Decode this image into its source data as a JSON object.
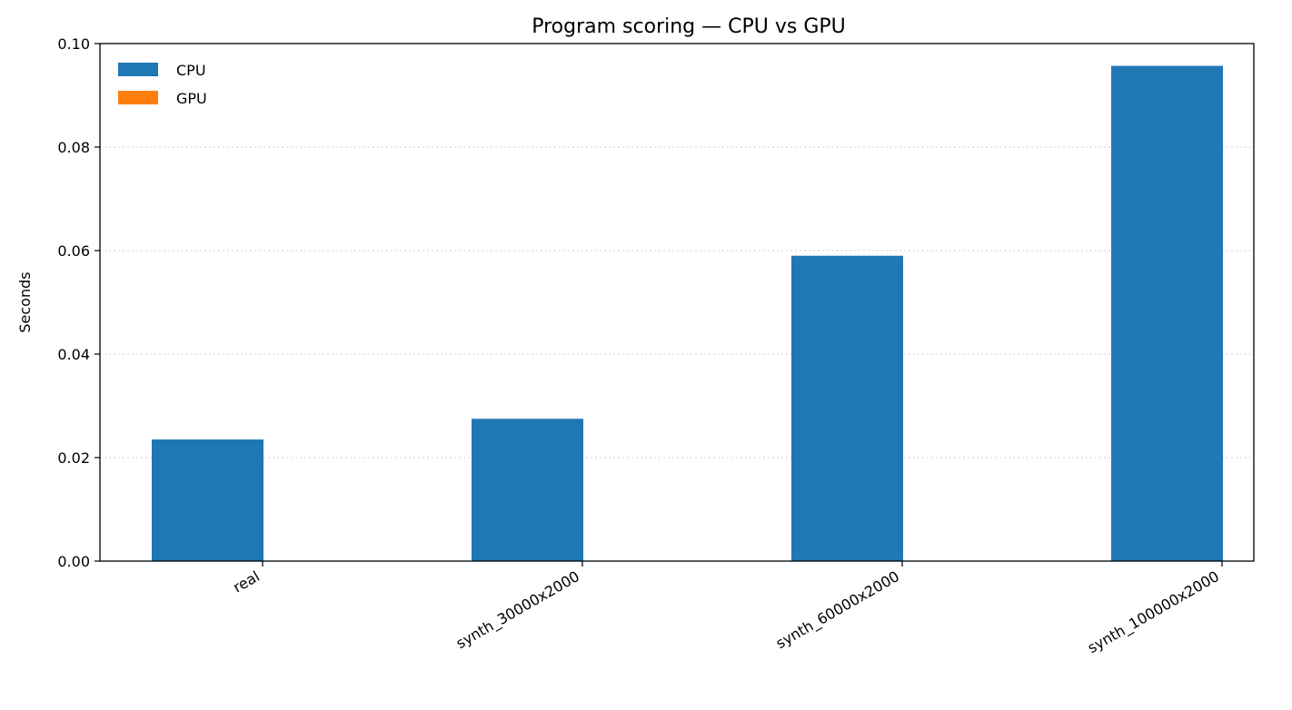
{
  "chart_data": {
    "type": "bar",
    "title": "Program scoring — CPU vs GPU",
    "xlabel": "",
    "ylabel": "Seconds",
    "categories": [
      "real",
      "synth_30000x2000",
      "synth_60000x2000",
      "synth_100000x2000"
    ],
    "series": [
      {
        "name": "CPU",
        "color": "#1f77b4",
        "values": [
          0.0235,
          0.0275,
          0.059,
          0.0957
        ]
      },
      {
        "name": "GPU",
        "color": "#ff7f0e",
        "values": [
          0,
          0,
          0,
          0
        ]
      }
    ],
    "ylim": [
      0,
      0.1
    ],
    "yticks": [
      "0.00",
      "0.02",
      "0.04",
      "0.06",
      "0.08",
      "0.10"
    ],
    "grid": "y-dotted",
    "legend": "top-left"
  }
}
